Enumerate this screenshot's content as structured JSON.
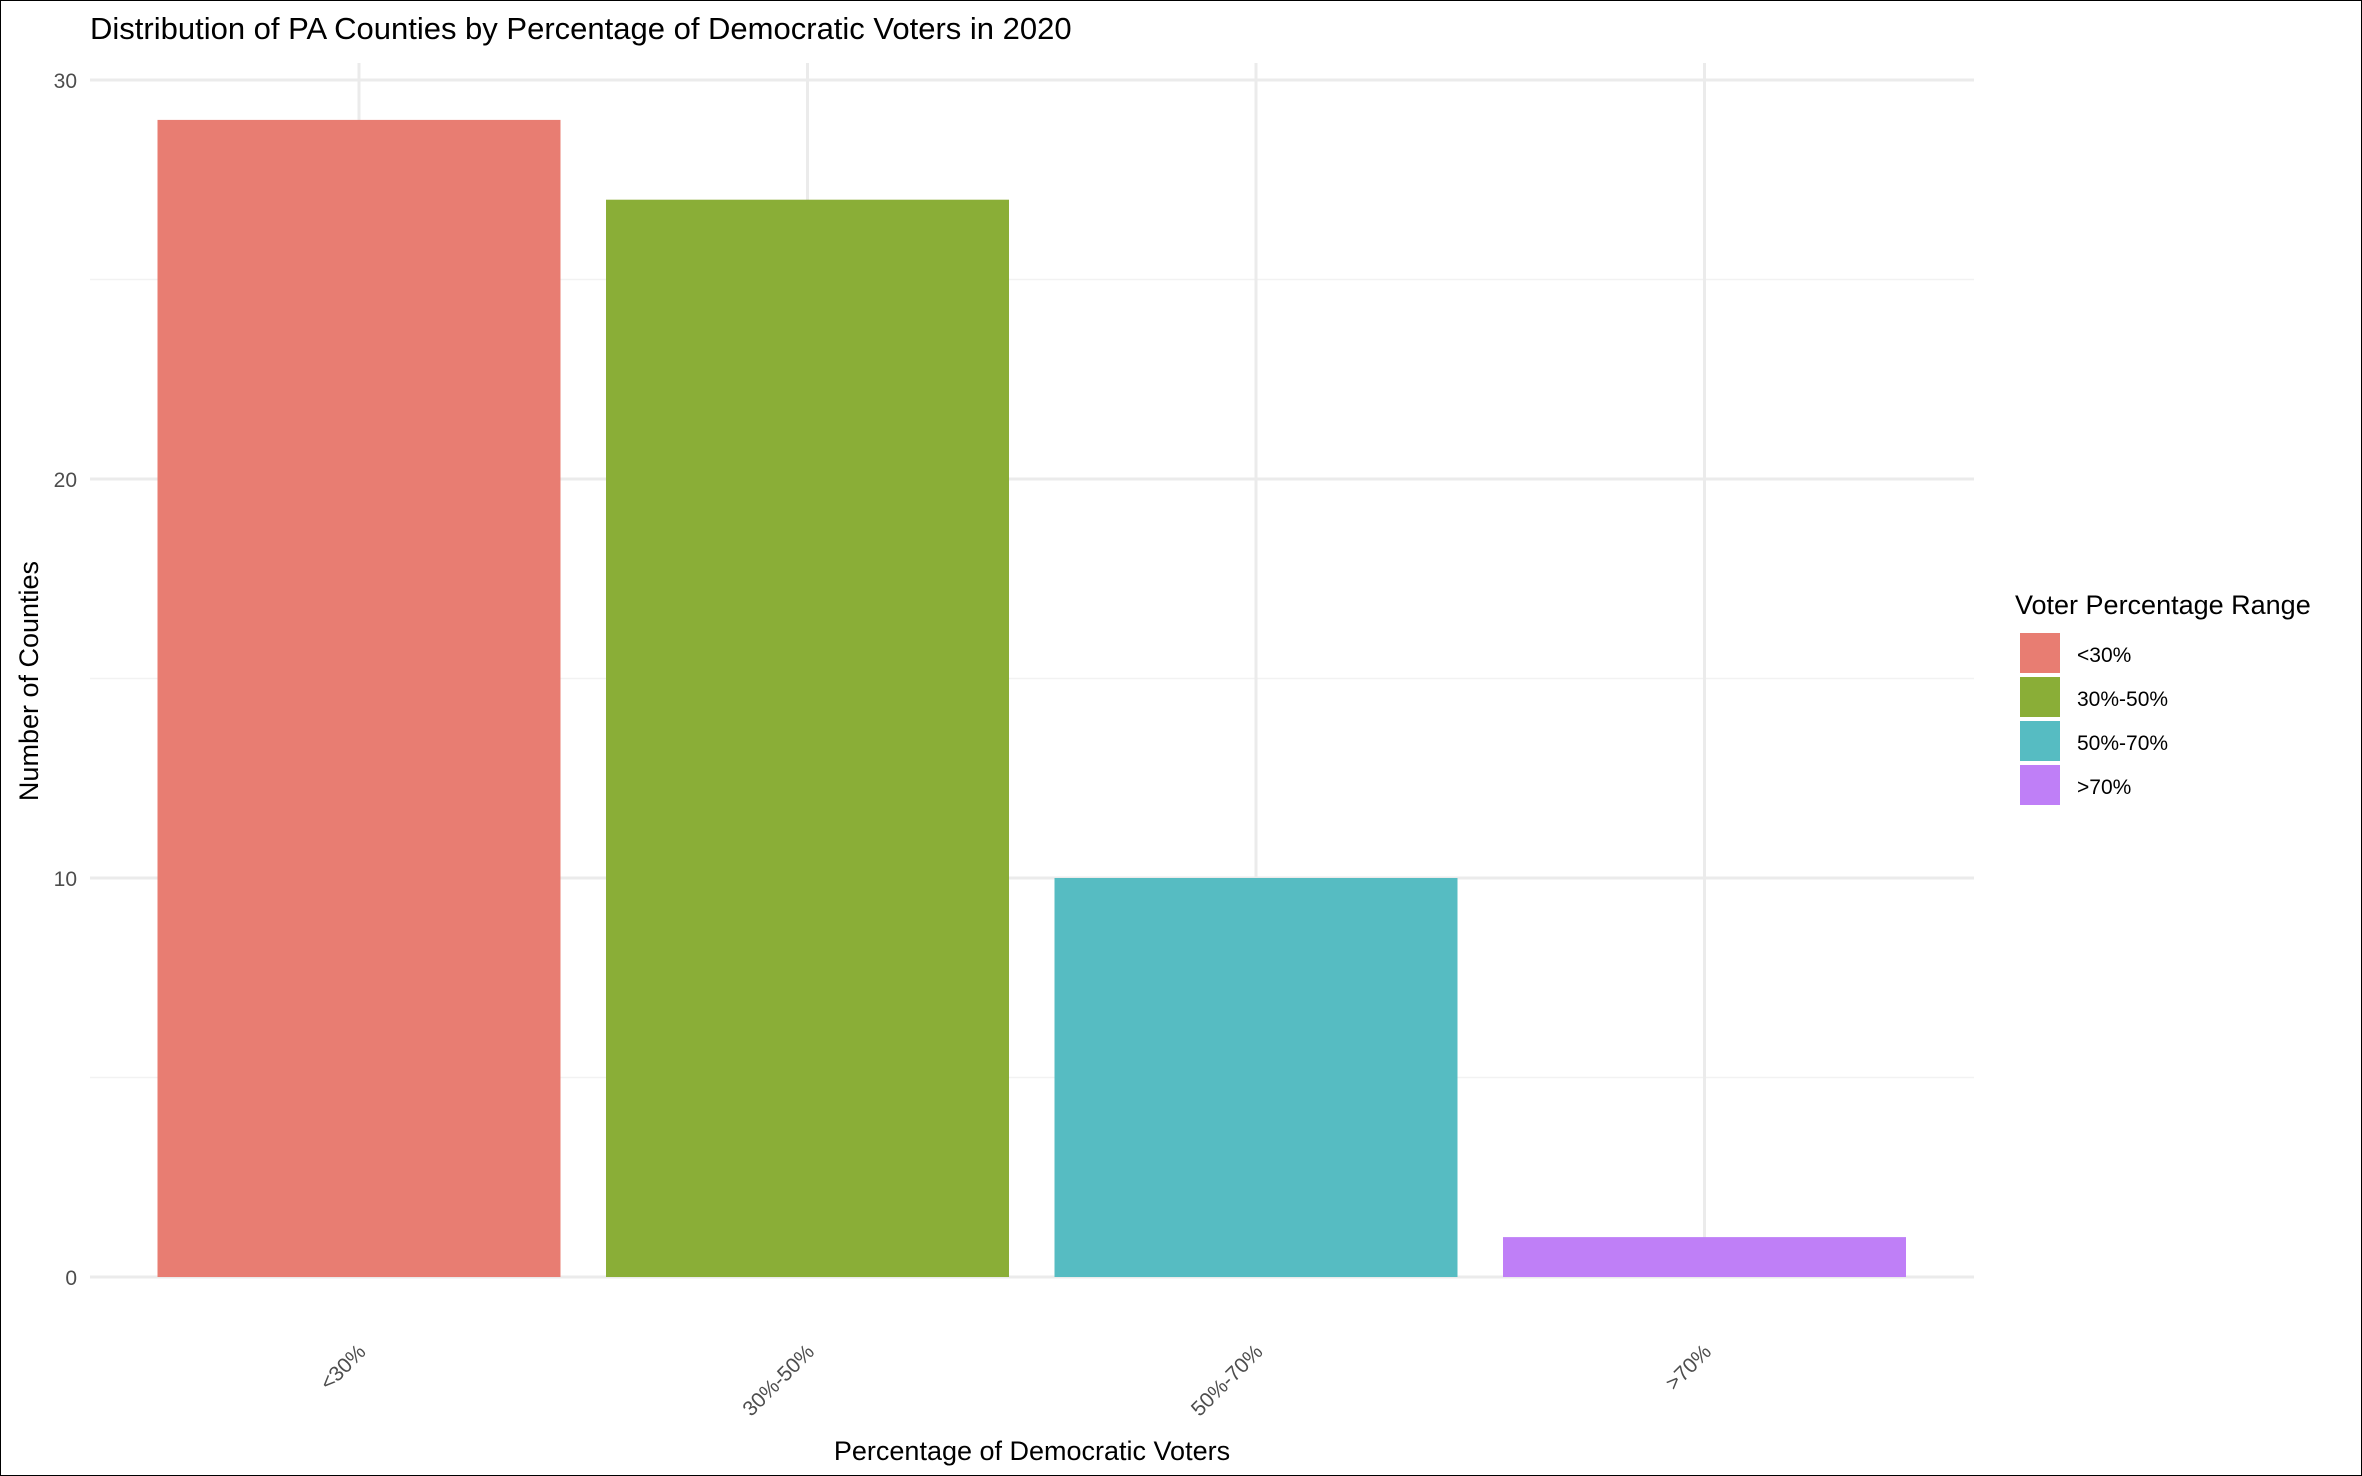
{
  "chart_data": {
    "type": "bar",
    "title": "Distribution of PA Counties by Percentage of Democratic Voters in 2020",
    "xlabel": "Percentage of Democratic Voters",
    "ylabel": "Number of Counties",
    "categories": [
      "<30%",
      "30%-50%",
      "50%-70%",
      ">70%"
    ],
    "values": [
      29,
      27,
      10,
      1
    ],
    "colors": [
      "#E87D72",
      "#8AAE37",
      "#56BCC2",
      "#BF7FF7"
    ],
    "ylim": [
      0,
      30
    ],
    "yticks": [
      0,
      10,
      20,
      30
    ],
    "grid": true,
    "legend": {
      "title": "Voter Percentage Range",
      "position": "right",
      "entries": [
        "<30%",
        "30%-50%",
        "50%-70%",
        ">70%"
      ]
    }
  }
}
